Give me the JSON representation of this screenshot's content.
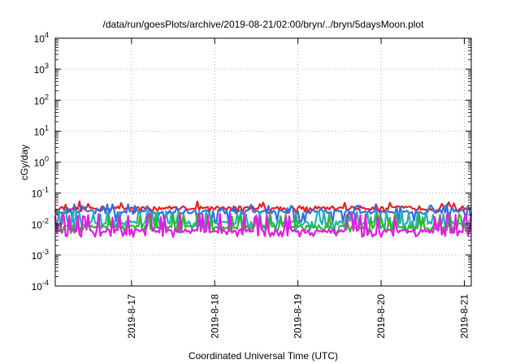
{
  "chart_data": {
    "type": "line",
    "title": "/data/run/goesPlots/archive/2019-08-21/02:00/bryn/../bryn/5daysMoon.plot",
    "xlabel": "Coordinated Universal Time (UTC)",
    "ylabel": "cGy/day",
    "yscale": "log",
    "ylim": [
      0.0001,
      10000
    ],
    "xlim": [
      "2019-08-16 02:00",
      "2019-08-21 02:00"
    ],
    "grid": true,
    "legend": "none",
    "y_ticks": [
      {
        "base": "10",
        "exp": "-4",
        "value": 0.0001
      },
      {
        "base": "10",
        "exp": "-3",
        "value": 0.001
      },
      {
        "base": "10",
        "exp": "-2",
        "value": 0.01
      },
      {
        "base": "10",
        "exp": "-1",
        "value": 0.1
      },
      {
        "base": "10",
        "exp": "0",
        "value": 1
      },
      {
        "base": "10",
        "exp": "1",
        "value": 10
      },
      {
        "base": "10",
        "exp": "2",
        "value": 100
      },
      {
        "base": "10",
        "exp": "3",
        "value": 1000
      },
      {
        "base": "10",
        "exp": "4",
        "value": 10000
      }
    ],
    "x_ticks": [
      {
        "label": "2019-8-17",
        "value": "2019-08-17 00:00"
      },
      {
        "label": "2019-8-18",
        "value": "2019-08-18 00:00"
      },
      {
        "label": "2019-8-19",
        "value": "2019-08-19 00:00"
      },
      {
        "label": "2019-8-20",
        "value": "2019-08-20 00:00"
      },
      {
        "label": "2019-8-21",
        "value": "2019-08-21 00:00"
      }
    ],
    "series": [
      {
        "color": "#e8211f",
        "base": 0.033,
        "low": 0.024,
        "high": 0.05,
        "dip_prob": 0.12
      },
      {
        "color": "#2f6fe8",
        "base": 0.025,
        "low": 0.012,
        "high": 0.04,
        "dip_prob": 0.25
      },
      {
        "color": "#22b3b3",
        "base": 0.011,
        "low": 0.007,
        "high": 0.025,
        "dip_prob": 0.3
      },
      {
        "color": "#2eb82e",
        "base": 0.008,
        "low": 0.0055,
        "high": 0.02,
        "dip_prob": 0.3
      },
      {
        "color": "#e619e6",
        "base": 0.006,
        "low": 0.0042,
        "high": 0.02,
        "dip_prob": 0.35
      }
    ]
  }
}
